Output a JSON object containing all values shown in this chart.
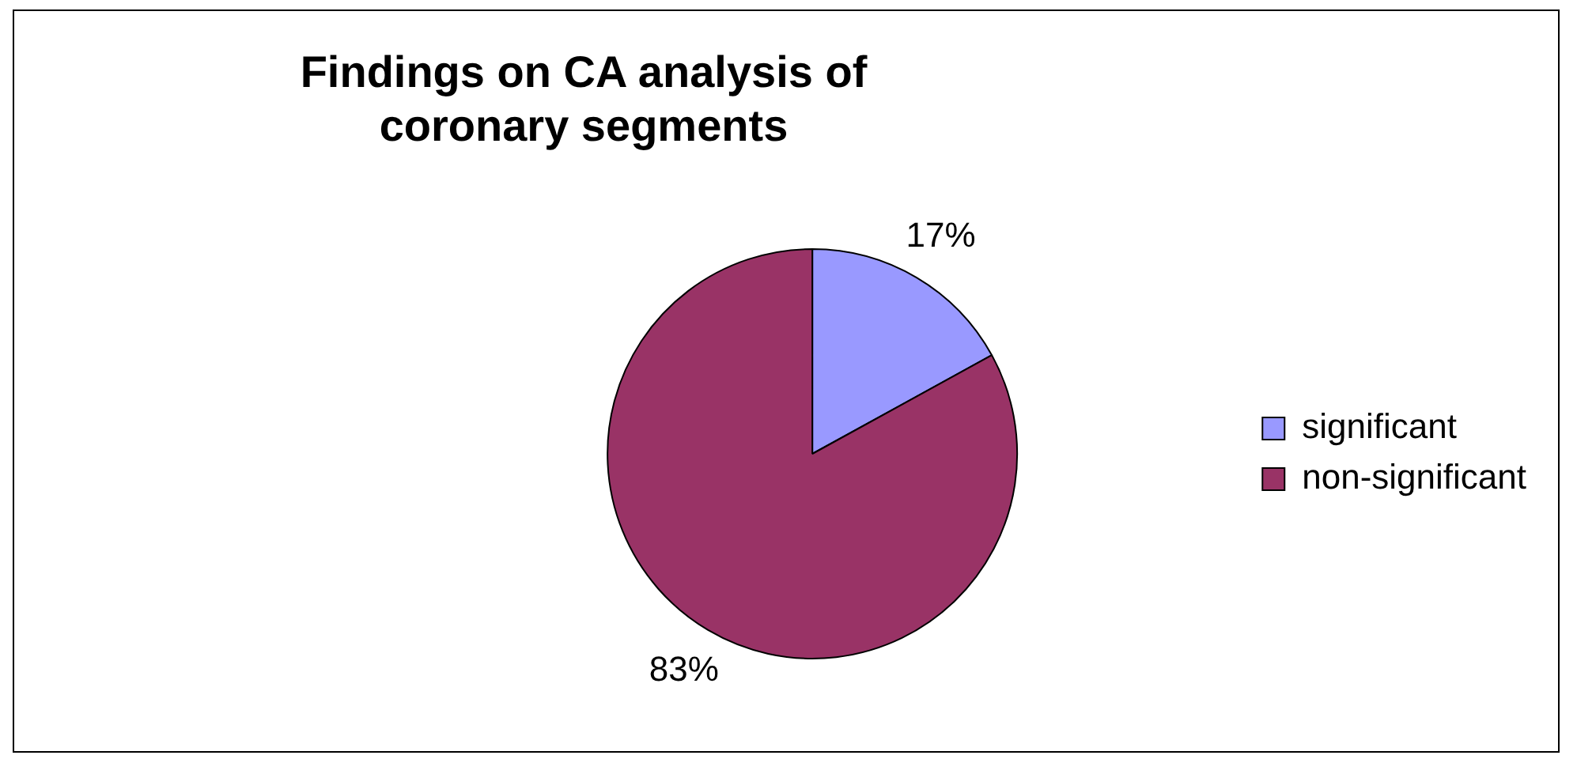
{
  "chart_data": {
    "type": "pie",
    "title": "Findings on CA analysis of coronary segments",
    "categories": [
      "significant",
      "non-significant"
    ],
    "values": [
      17,
      83
    ],
    "colors": [
      "#9999ff",
      "#993366"
    ],
    "value_labels": [
      "17%",
      "83%"
    ],
    "legend": "right"
  }
}
